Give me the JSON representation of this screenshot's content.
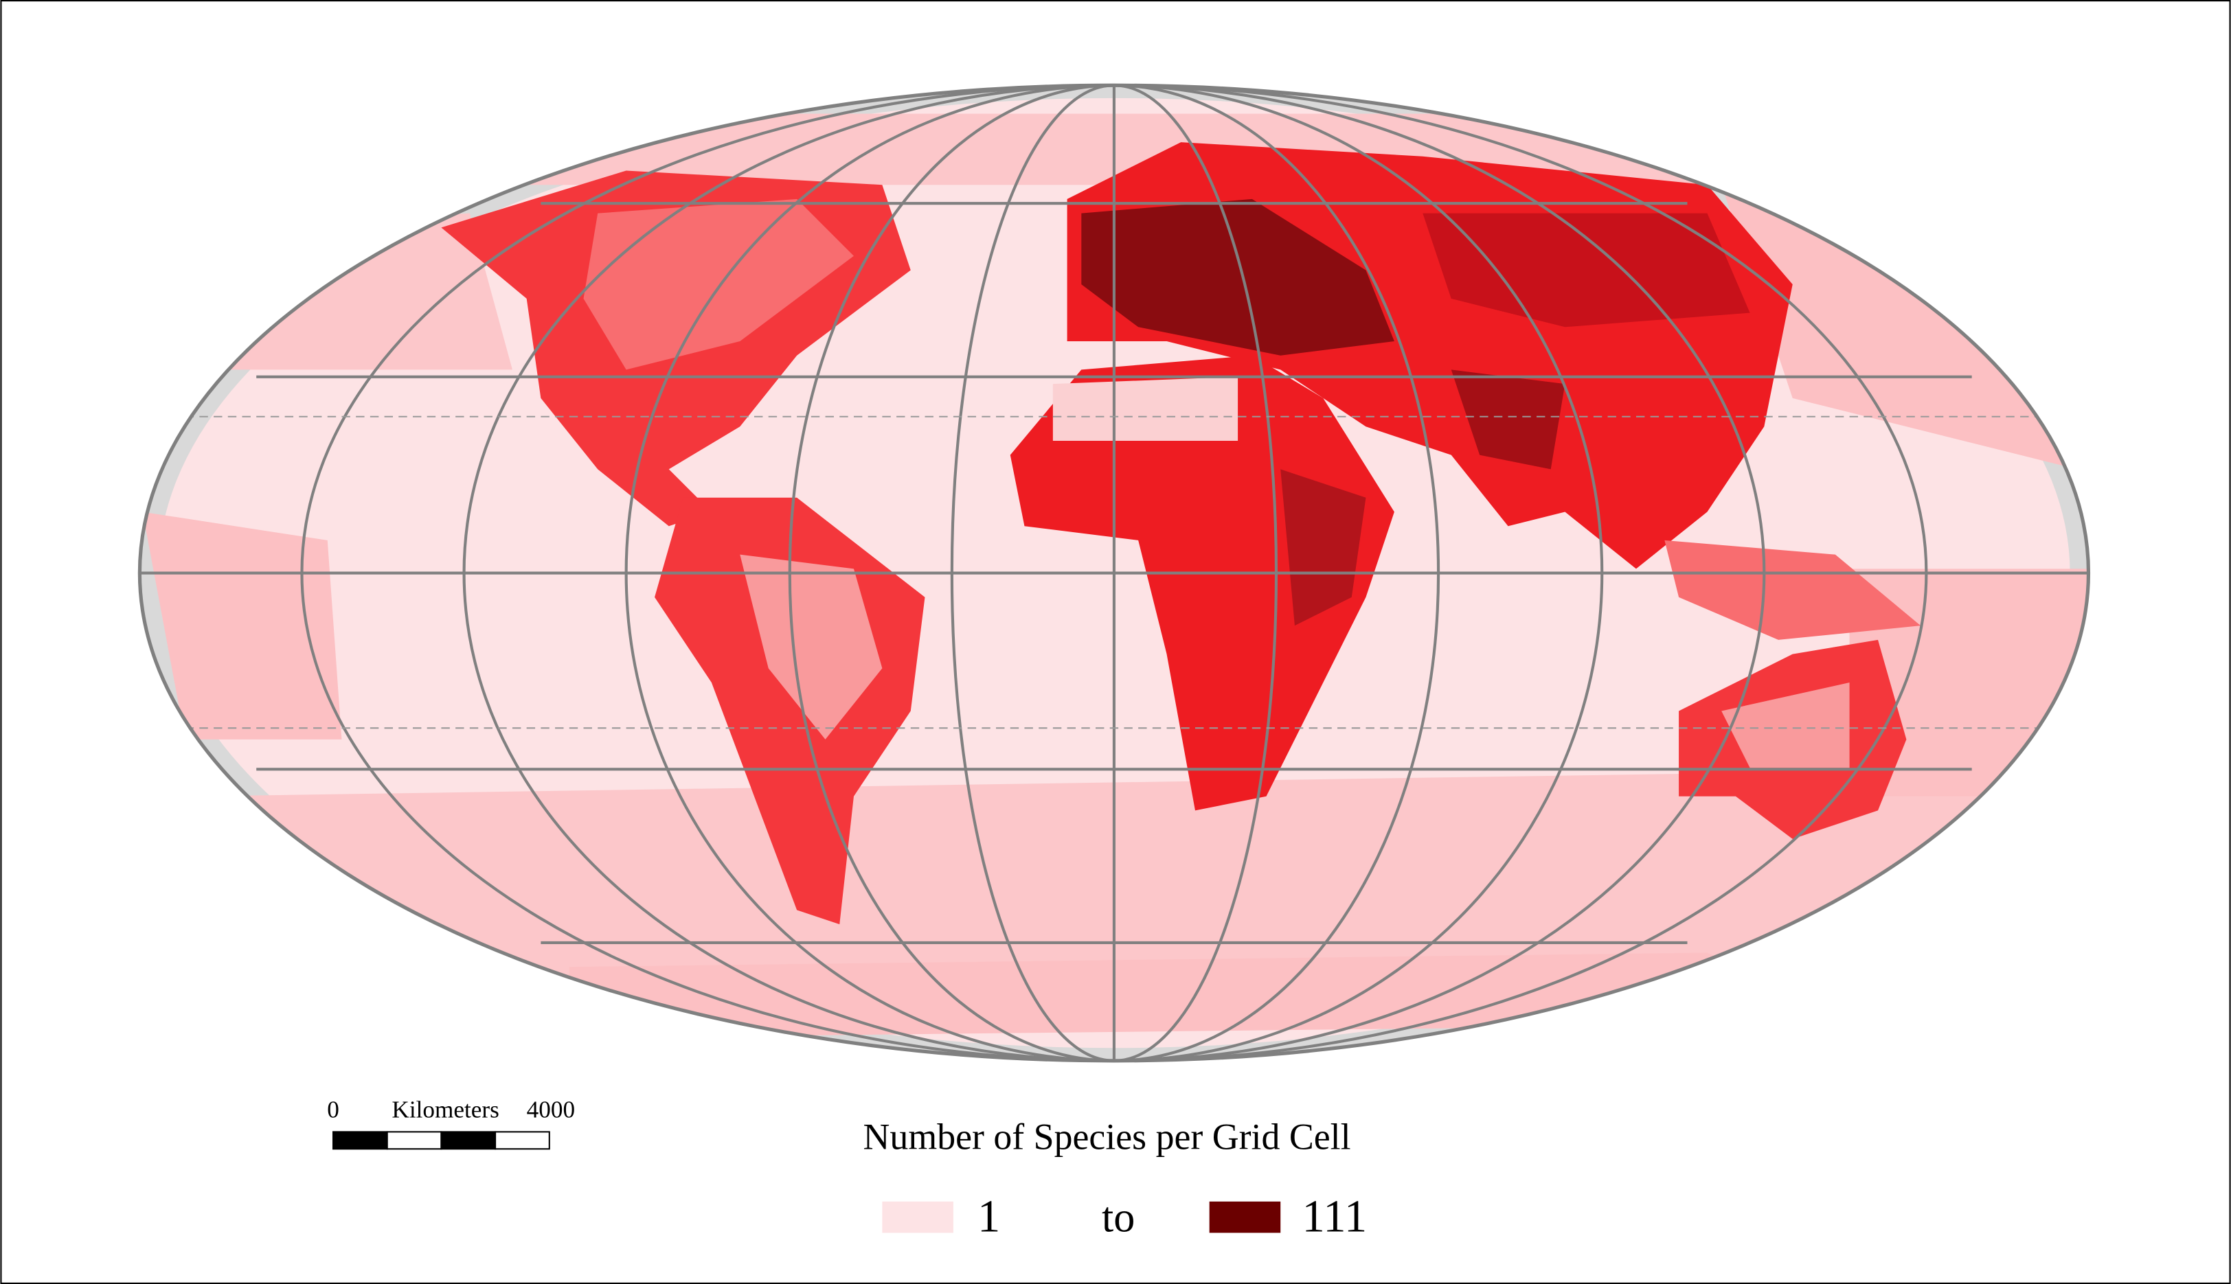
{
  "legend": {
    "title": "Number of Species per Grid Cell",
    "min": 1,
    "joiner": "to",
    "max": 111
  },
  "scale_bar": {
    "start": 0,
    "unit": "Kilometers",
    "end": 4000
  }
}
